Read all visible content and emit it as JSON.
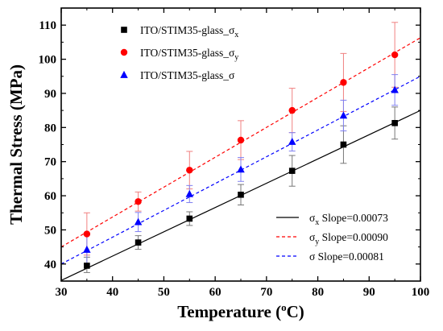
{
  "chart_data": {
    "type": "scatter",
    "xlabel": {
      "main": "Temperature (",
      "sup": "o",
      "end": "C)"
    },
    "ylabel": "Thermal Stress (MPa)",
    "xlim": [
      30,
      100
    ],
    "ylim": [
      35,
      115
    ],
    "xticks": [
      30,
      40,
      50,
      60,
      70,
      80,
      90,
      100
    ],
    "yticks": [
      40,
      50,
      60,
      70,
      80,
      90,
      100,
      110
    ],
    "grid": false,
    "legend_position": "top-left",
    "series": [
      {
        "name": "ITO/STIM35-glass_σx",
        "label_main": "ITO/STIM35-glass_σ",
        "label_sub": "x",
        "marker": "square",
        "color": "#000000",
        "x": [
          35,
          45,
          55,
          65,
          75,
          85,
          95
        ],
        "y": [
          39.5,
          46.3,
          53.3,
          60.3,
          67.3,
          75.0,
          81.3
        ],
        "err_up": [
          2.5,
          2.0,
          2.0,
          3.0,
          4.5,
          5.5,
          4.7
        ],
        "err_down": [
          2.0,
          2.0,
          2.0,
          3.0,
          4.5,
          5.5,
          4.7
        ]
      },
      {
        "name": "ITO/STIM35-glass_σy",
        "label_main": "ITO/STIM35-glass_σ",
        "label_sub": "y",
        "marker": "circle",
        "color": "#ff0000",
        "x": [
          35,
          45,
          55,
          65,
          75,
          85,
          95
        ],
        "y": [
          48.8,
          58.3,
          67.5,
          76.3,
          85.0,
          93.2,
          101.3
        ],
        "err_up": [
          6.2,
          2.8,
          5.5,
          5.7,
          6.5,
          8.5,
          9.5
        ],
        "err_down": [
          6.2,
          2.8,
          5.5,
          5.7,
          6.5,
          8.5,
          9.5
        ]
      },
      {
        "name": "ITO/STIM35-glass_σ",
        "label_main": "ITO/STIM35-glass_σ",
        "label_sub": "",
        "marker": "triangle",
        "color": "#0000ff",
        "x": [
          35,
          45,
          55,
          65,
          75,
          85,
          95
        ],
        "y": [
          44.2,
          52.3,
          60.5,
          67.7,
          75.8,
          83.5,
          91.0
        ],
        "err_up": [
          4.3,
          2.8,
          2.5,
          3.5,
          2.7,
          4.5,
          4.5
        ],
        "err_down": [
          4.3,
          2.8,
          2.5,
          3.5,
          2.7,
          4.5,
          4.5
        ]
      }
    ],
    "fits": [
      {
        "label_main": "σ",
        "label_sub": "x",
        "label_rest": " Slope=0.00073",
        "style": "solid",
        "color": "#000000",
        "x_range": [
          30,
          100
        ],
        "y_range": [
          35.2,
          85.0
        ]
      },
      {
        "label_main": "σ",
        "label_sub": "y",
        "label_rest": " Slope=0.00090",
        "style": "dashed",
        "color": "#ff0000",
        "x_range": [
          30,
          100
        ],
        "y_range": [
          45.0,
          106.3
        ]
      },
      {
        "label_main": "σ",
        "label_sub": "",
        "label_rest": "  Slope=0.00081",
        "style": "dashed",
        "color": "#0000ff",
        "x_range": [
          30,
          100
        ],
        "y_range": [
          40.0,
          95.0
        ]
      }
    ]
  }
}
